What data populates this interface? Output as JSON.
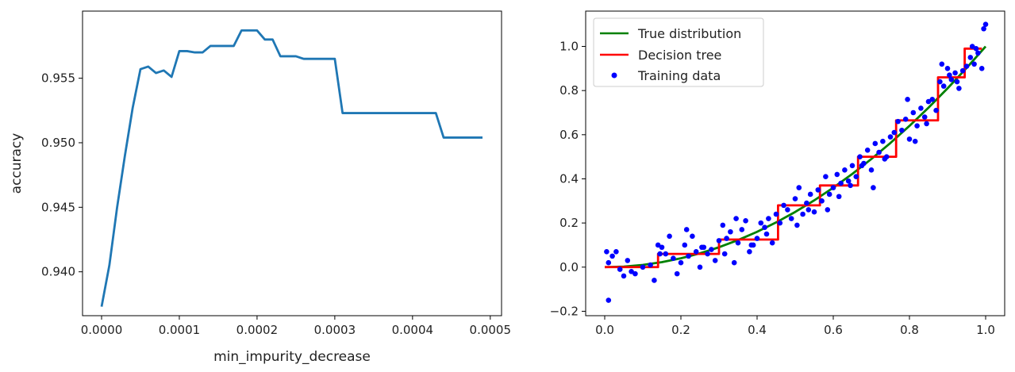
{
  "chart_data": [
    {
      "type": "line",
      "title": "",
      "xlabel": "min_impurity_decrease",
      "ylabel": "accuracy",
      "xlim": [
        -2.45e-05,
        0.0005145
      ],
      "ylim": [
        0.9366,
        0.9602
      ],
      "xticks": [
        0.0,
        0.0001,
        0.0002,
        0.0003,
        0.0004,
        0.0005
      ],
      "xtick_labels": [
        "0.0000",
        "0.0001",
        "0.0002",
        "0.0003",
        "0.0004",
        "0.0005"
      ],
      "yticks": [
        0.94,
        0.945,
        0.95,
        0.955
      ],
      "ytick_labels": [
        "0.940",
        "0.945",
        "0.950",
        "0.955"
      ],
      "grid": false,
      "series": [
        {
          "color": "#1f77b4",
          "x": [
            0.0,
            1e-05,
            2e-05,
            3e-05,
            4e-05,
            5e-05,
            6e-05,
            7e-05,
            8e-05,
            9e-05,
            0.0001,
            0.00011,
            0.00012,
            0.00013,
            0.00014,
            0.00015,
            0.00016,
            0.00017,
            0.00018,
            0.00019,
            0.0002,
            0.00021,
            0.00022,
            0.00023,
            0.00024,
            0.00025,
            0.00026,
            0.00027,
            0.00028,
            0.00029,
            0.0003,
            0.00031,
            0.00032,
            0.00033,
            0.00034,
            0.00035,
            0.00036,
            0.00037,
            0.00038,
            0.00039,
            0.0004,
            0.00041,
            0.00042,
            0.00043,
            0.00044,
            0.00045,
            0.00046,
            0.00047,
            0.00048,
            0.00049
          ],
          "y": [
            0.9373,
            0.9405,
            0.945,
            0.949,
            0.9527,
            0.9557,
            0.9559,
            0.9554,
            0.9556,
            0.9551,
            0.9571,
            0.9571,
            0.957,
            0.957,
            0.9575,
            0.9575,
            0.9575,
            0.9575,
            0.9587,
            0.9587,
            0.9587,
            0.958,
            0.958,
            0.9567,
            0.9567,
            0.9567,
            0.9565,
            0.9565,
            0.9565,
            0.9565,
            0.9565,
            0.9523,
            0.9523,
            0.9523,
            0.9523,
            0.9523,
            0.9523,
            0.9523,
            0.9523,
            0.9523,
            0.9523,
            0.9523,
            0.9523,
            0.9523,
            0.9504,
            0.9504,
            0.9504,
            0.9504,
            0.9504,
            0.9504
          ]
        }
      ]
    },
    {
      "type": "scatter",
      "title": "",
      "xlabel": "",
      "ylabel": "",
      "xlim": [
        -0.05,
        1.05
      ],
      "ylim": [
        -0.22,
        1.16
      ],
      "xticks": [
        0.0,
        0.2,
        0.4,
        0.6,
        0.8,
        1.0
      ],
      "xtick_labels": [
        "0.0",
        "0.2",
        "0.4",
        "0.6",
        "0.8",
        "1.0"
      ],
      "yticks": [
        -0.2,
        0.0,
        0.2,
        0.4,
        0.6,
        0.8,
        1.0
      ],
      "ytick_labels": [
        "−0.2",
        "0.0",
        "0.2",
        "0.4",
        "0.6",
        "0.8",
        "1.0"
      ],
      "grid": false,
      "legend_position": "top-left",
      "series": [
        {
          "name": "True distribution",
          "kind": "line",
          "color": "#008000",
          "x": [
            0.0,
            0.05,
            0.1,
            0.15,
            0.2,
            0.25,
            0.3,
            0.35,
            0.4,
            0.45,
            0.5,
            0.55,
            0.6,
            0.65,
            0.7,
            0.75,
            0.8,
            0.85,
            0.9,
            0.95,
            1.0
          ],
          "y": [
            0.0,
            0.0025,
            0.01,
            0.0225,
            0.04,
            0.0625,
            0.09,
            0.1225,
            0.16,
            0.2025,
            0.25,
            0.3025,
            0.36,
            0.4225,
            0.49,
            0.5625,
            0.64,
            0.7225,
            0.81,
            0.9025,
            1.0
          ]
        },
        {
          "name": "Decision tree",
          "kind": "step",
          "color": "#ff0000",
          "x": [
            0.0,
            0.14,
            0.14,
            0.3,
            0.3,
            0.455,
            0.455,
            0.565,
            0.565,
            0.665,
            0.665,
            0.765,
            0.765,
            0.875,
            0.875,
            0.945,
            0.945,
            0.99
          ],
          "y": [
            0.0,
            0.0,
            0.06,
            0.06,
            0.125,
            0.125,
            0.28,
            0.28,
            0.37,
            0.37,
            0.5,
            0.5,
            0.665,
            0.665,
            0.86,
            0.86,
            0.99,
            0.99
          ]
        },
        {
          "name": "Training data",
          "kind": "scatter",
          "color": "#0000ff",
          "x": [
            0.005,
            0.01,
            0.02,
            0.03,
            0.04,
            0.05,
            0.06,
            0.07,
            0.08,
            0.01,
            0.1,
            0.12,
            0.13,
            0.14,
            0.15,
            0.16,
            0.17,
            0.18,
            0.19,
            0.2,
            0.21,
            0.22,
            0.23,
            0.24,
            0.25,
            0.26,
            0.27,
            0.28,
            0.29,
            0.3,
            0.31,
            0.32,
            0.33,
            0.34,
            0.35,
            0.36,
            0.37,
            0.38,
            0.39,
            0.4,
            0.41,
            0.42,
            0.43,
            0.44,
            0.45,
            0.46,
            0.47,
            0.48,
            0.49,
            0.5,
            0.51,
            0.52,
            0.53,
            0.54,
            0.55,
            0.56,
            0.57,
            0.58,
            0.59,
            0.6,
            0.61,
            0.62,
            0.63,
            0.64,
            0.65,
            0.66,
            0.67,
            0.68,
            0.69,
            0.7,
            0.71,
            0.72,
            0.73,
            0.74,
            0.75,
            0.76,
            0.77,
            0.78,
            0.79,
            0.8,
            0.81,
            0.82,
            0.83,
            0.84,
            0.85,
            0.86,
            0.87,
            0.88,
            0.89,
            0.9,
            0.91,
            0.92,
            0.93,
            0.94,
            0.95,
            0.96,
            0.97,
            0.98,
            0.99,
            1.0,
            0.145,
            0.215,
            0.255,
            0.315,
            0.345,
            0.385,
            0.425,
            0.505,
            0.535,
            0.585,
            0.615,
            0.645,
            0.675,
            0.705,
            0.735,
            0.795,
            0.815,
            0.845,
            0.885,
            0.905,
            0.925,
            0.965,
            0.975,
            0.995
          ],
          "y": [
            0.07,
            0.02,
            0.05,
            0.07,
            -0.01,
            -0.04,
            0.03,
            -0.02,
            -0.03,
            -0.15,
            0.0,
            0.01,
            -0.06,
            0.1,
            0.09,
            0.06,
            0.14,
            0.04,
            -0.03,
            0.02,
            0.1,
            0.05,
            0.14,
            0.07,
            0.0,
            0.09,
            0.06,
            0.08,
            0.03,
            0.12,
            0.19,
            0.13,
            0.16,
            0.02,
            0.11,
            0.17,
            0.21,
            0.07,
            0.1,
            0.13,
            0.2,
            0.18,
            0.22,
            0.11,
            0.24,
            0.2,
            0.28,
            0.26,
            0.22,
            0.31,
            0.36,
            0.24,
            0.29,
            0.33,
            0.25,
            0.35,
            0.3,
            0.41,
            0.33,
            0.36,
            0.42,
            0.38,
            0.44,
            0.39,
            0.46,
            0.41,
            0.5,
            0.47,
            0.53,
            0.44,
            0.56,
            0.52,
            0.57,
            0.5,
            0.59,
            0.61,
            0.66,
            0.62,
            0.67,
            0.58,
            0.7,
            0.64,
            0.72,
            0.68,
            0.75,
            0.76,
            0.71,
            0.84,
            0.82,
            0.9,
            0.85,
            0.88,
            0.81,
            0.89,
            0.91,
            0.95,
            0.92,
            0.97,
            0.9,
            1.1,
            0.06,
            0.17,
            0.09,
            0.06,
            0.22,
            0.1,
            0.15,
            0.19,
            0.26,
            0.26,
            0.32,
            0.37,
            0.46,
            0.36,
            0.49,
            0.76,
            0.57,
            0.65,
            0.92,
            0.87,
            0.84,
            1.0,
            0.99,
            1.08
          ]
        }
      ]
    }
  ]
}
